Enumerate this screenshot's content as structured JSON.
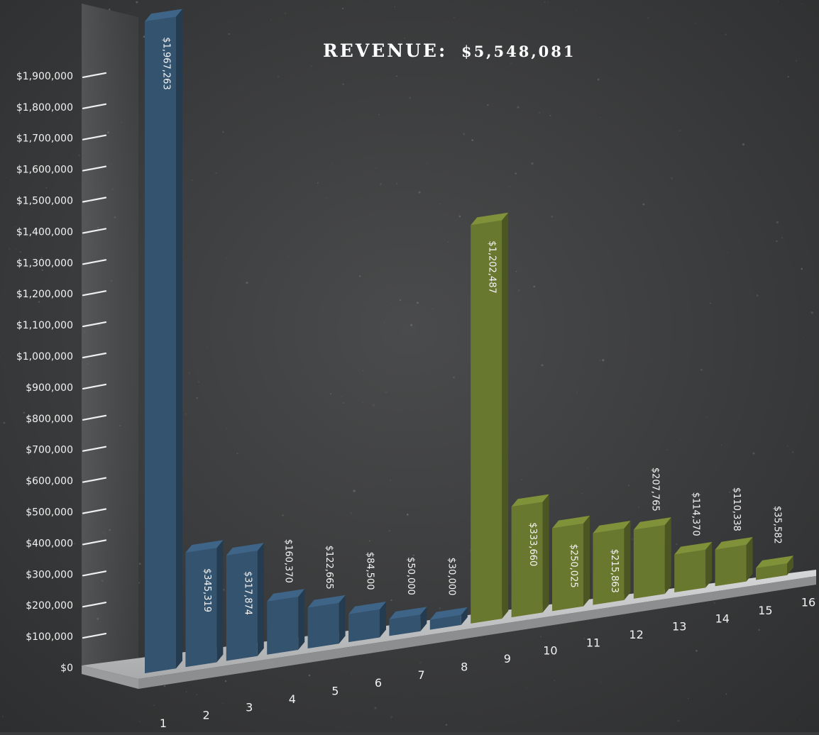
{
  "chart_data": {
    "type": "bar",
    "title": "REVENUE: $5,548,081",
    "title_label": "REVENUE:",
    "title_value": "$5,548,081",
    "categories": [
      "1",
      "2",
      "3",
      "4",
      "5",
      "6",
      "7",
      "8",
      "9",
      "10",
      "11",
      "12",
      "13",
      "14",
      "15",
      "16"
    ],
    "values": [
      1967263,
      345319,
      317874,
      160370,
      122665,
      84500,
      50000,
      30000,
      1202487,
      333660,
      250025,
      215863,
      207765,
      114370,
      110338,
      35582
    ],
    "value_labels": [
      "$1,967,263",
      "$345,319",
      "$317,874",
      "$160,370",
      "$122,665",
      "$84,500",
      "$50,000",
      "$30,000",
      "$1,202,487",
      "$333,660",
      "$250,025",
      "$215,863",
      "$207,765",
      "$114,370",
      "$110,338",
      "$35,582"
    ],
    "yticks": [
      "$0",
      "$100,000",
      "$200,000",
      "$300,000",
      "$400,000",
      "$500,000",
      "$600,000",
      "$700,000",
      "$800,000",
      "$900,000",
      "$1,000,000",
      "$1,100,000",
      "$1,200,000",
      "$1,300,000",
      "$1,400,000",
      "$1,500,000",
      "$1,600,000",
      "$1,700,000",
      "$1,800,000",
      "$1,900,000"
    ],
    "ylim": [
      0,
      1900000
    ],
    "xlabel": "",
    "ylabel": "",
    "series_colors": [
      "#33536f",
      "#33536f",
      "#33536f",
      "#33536f",
      "#33536f",
      "#33536f",
      "#33536f",
      "#33536f",
      "#68782f",
      "#68782f",
      "#68782f",
      "#68782f",
      "#68782f",
      "#68782f",
      "#68782f",
      "#68782f"
    ],
    "background_color": "#3a3b3c",
    "grid": false
  }
}
